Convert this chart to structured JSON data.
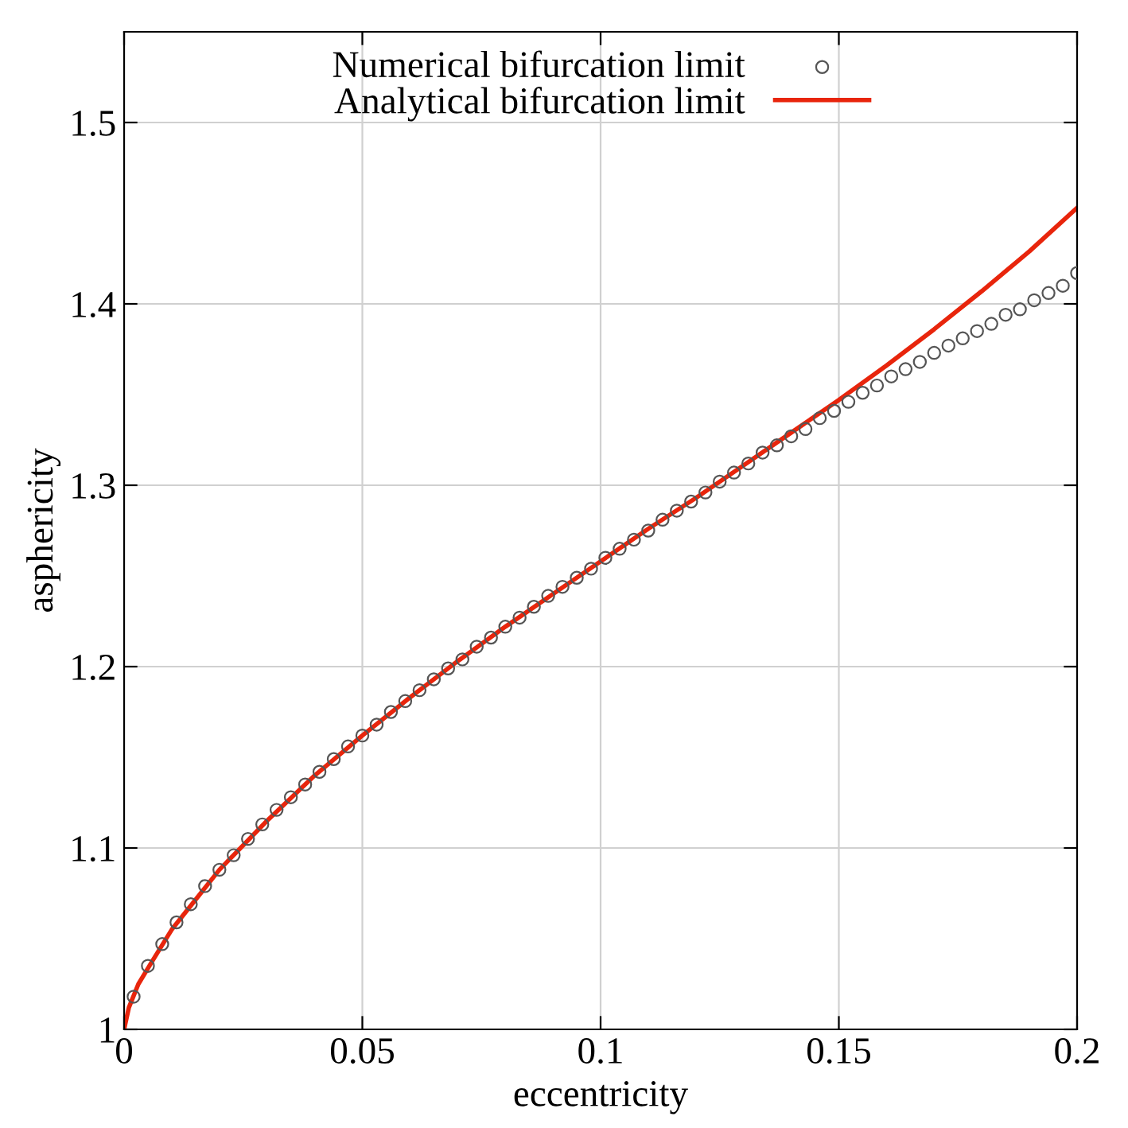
{
  "chart_data": {
    "type": "scatter",
    "xlabel": "eccentricity",
    "ylabel": "asphericity",
    "xlim": [
      0,
      0.2
    ],
    "ylim": [
      1,
      1.55
    ],
    "xticks": [
      0,
      0.05,
      0.1,
      0.15,
      0.2
    ],
    "yticks": [
      1,
      1.1,
      1.2,
      1.3,
      1.4,
      1.5
    ],
    "grid": true,
    "legend": "top",
    "series": [
      {
        "name": "Numerical bifurcation limit",
        "marker": "circle",
        "color": "#555555",
        "x": [
          0.002,
          0.005,
          0.008,
          0.011,
          0.014,
          0.017,
          0.02,
          0.023,
          0.026,
          0.029,
          0.032,
          0.035,
          0.038,
          0.041,
          0.044,
          0.047,
          0.05,
          0.053,
          0.056,
          0.059,
          0.062,
          0.065,
          0.068,
          0.071,
          0.074,
          0.077,
          0.08,
          0.083,
          0.086,
          0.089,
          0.092,
          0.095,
          0.098,
          0.101,
          0.104,
          0.107,
          0.11,
          0.113,
          0.116,
          0.119,
          0.122,
          0.125,
          0.128,
          0.131,
          0.134,
          0.137,
          0.14,
          0.143,
          0.146,
          0.149,
          0.152,
          0.155,
          0.158,
          0.161,
          0.164,
          0.167,
          0.17,
          0.173,
          0.176,
          0.179,
          0.182,
          0.185,
          0.188,
          0.191,
          0.194,
          0.197,
          0.2
        ],
        "values": [
          1.018,
          1.035,
          1.047,
          1.059,
          1.069,
          1.079,
          1.088,
          1.096,
          1.105,
          1.113,
          1.121,
          1.128,
          1.135,
          1.142,
          1.149,
          1.156,
          1.162,
          1.168,
          1.175,
          1.181,
          1.187,
          1.193,
          1.199,
          1.204,
          1.211,
          1.216,
          1.222,
          1.227,
          1.233,
          1.239,
          1.244,
          1.249,
          1.254,
          1.26,
          1.265,
          1.27,
          1.275,
          1.281,
          1.286,
          1.291,
          1.296,
          1.302,
          1.307,
          1.312,
          1.318,
          1.322,
          1.327,
          1.331,
          1.337,
          1.341,
          1.346,
          1.351,
          1.355,
          1.36,
          1.364,
          1.368,
          1.373,
          1.377,
          1.381,
          1.385,
          1.389,
          1.394,
          1.397,
          1.402,
          1.406,
          1.41,
          1.417
        ]
      },
      {
        "name": "Analytical bifurcation limit",
        "type": "line",
        "marker": "none",
        "line_style": "solid",
        "color": "#e8250c",
        "x": [
          0,
          0.001,
          0.003,
          0.006,
          0.01,
          0.02,
          0.03,
          0.04,
          0.05,
          0.06,
          0.07,
          0.08,
          0.09,
          0.1,
          0.11,
          0.12,
          0.13,
          0.14,
          0.15,
          0.16,
          0.17,
          0.18,
          0.19,
          0.2
        ],
        "values": [
          1.0,
          1.012,
          1.025,
          1.038,
          1.055,
          1.088,
          1.115,
          1.14,
          1.162,
          1.183,
          1.203,
          1.222,
          1.24,
          1.258,
          1.276,
          1.293,
          1.311,
          1.329,
          1.347,
          1.366,
          1.386,
          1.407,
          1.429,
          1.453
        ]
      }
    ]
  }
}
